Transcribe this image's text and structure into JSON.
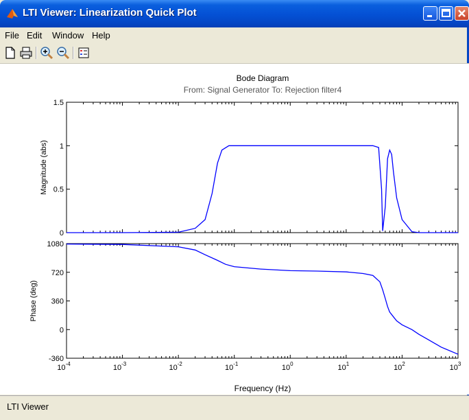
{
  "window": {
    "title": "LTI Viewer: Linearization Quick Plot"
  },
  "menu": {
    "items": [
      "File",
      "Edit",
      "Window",
      "Help"
    ]
  },
  "toolbar": {
    "buttons": [
      "new-document-icon",
      "print-icon",
      "zoom-in-icon",
      "zoom-out-icon",
      "legend-icon"
    ]
  },
  "chart_data": {
    "type": "line",
    "title": "Bode Diagram",
    "subtitle": "From: Signal Generator  To: Rejection filter4",
    "xlabel": "Frequency  (Hz)",
    "xscale": "log",
    "xlim": [
      0.0001,
      1000
    ],
    "x_tick_labels": [
      "10^-4",
      "10^-3",
      "10^-2",
      "10^-1",
      "10^0",
      "10^1",
      "10^2",
      "10^3"
    ],
    "color": "#0000ff",
    "panels": [
      {
        "name": "magnitude",
        "ylabel": "Magnitude (abs)",
        "ylim": [
          0,
          1.5
        ],
        "yticks": [
          "1.5",
          "1",
          "0.5",
          "0"
        ],
        "x": [
          0.0001,
          0.001,
          0.01,
          0.02,
          0.03,
          0.04,
          0.05,
          0.06,
          0.08,
          0.1,
          1,
          10,
          30,
          38,
          43,
          45,
          50,
          55,
          60,
          65,
          70,
          80,
          100,
          150,
          200,
          1000
        ],
        "y": [
          0,
          0,
          0.005,
          0.05,
          0.15,
          0.45,
          0.8,
          0.95,
          1,
          1,
          1,
          1,
          1,
          0.98,
          0.5,
          0.02,
          0.3,
          0.85,
          0.95,
          0.9,
          0.7,
          0.4,
          0.15,
          0.01,
          0,
          0
        ]
      },
      {
        "name": "phase",
        "ylabel": "Phase (deg)",
        "ylim": [
          -360,
          1080
        ],
        "yticks": [
          "1080",
          "720",
          "360",
          "0",
          "-360"
        ],
        "x": [
          0.0001,
          0.001,
          0.01,
          0.02,
          0.03,
          0.05,
          0.07,
          0.1,
          0.3,
          1,
          3,
          10,
          20,
          30,
          40,
          45,
          50,
          55,
          60,
          70,
          80,
          100,
          150,
          200,
          300,
          500,
          1000
        ],
        "y": [
          1075,
          1070,
          1040,
          1000,
          940,
          870,
          820,
          790,
          760,
          740,
          735,
          725,
          705,
          680,
          600,
          500,
          390,
          290,
          220,
          160,
          110,
          60,
          0,
          -60,
          -130,
          -220,
          -310
        ]
      }
    ]
  },
  "status": {
    "text": "LTI Viewer"
  }
}
